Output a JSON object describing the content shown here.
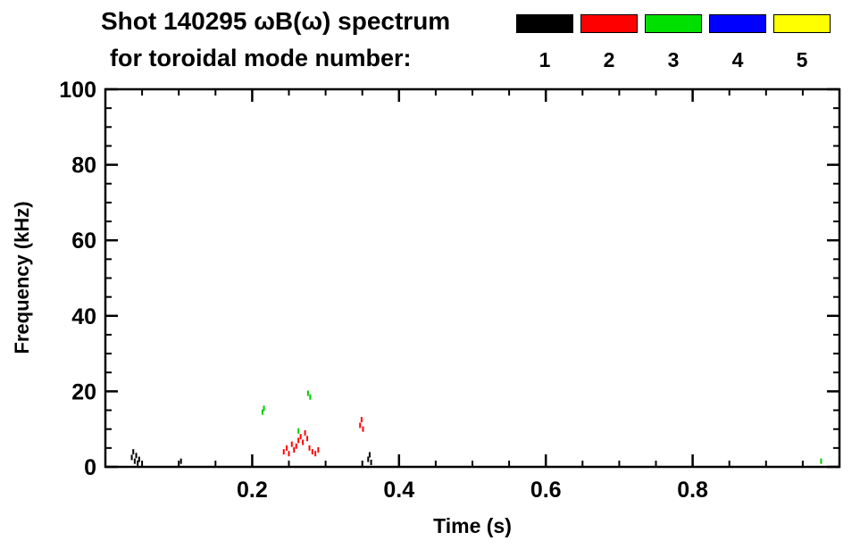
{
  "header": {
    "title": "Shot 140295 ωB(ω) spectrum",
    "subtitle": "for toroidal mode number:"
  },
  "legend": {
    "items": [
      {
        "label": "1",
        "color": "#000000"
      },
      {
        "label": "2",
        "color": "#ff0000"
      },
      {
        "label": "3",
        "color": "#00e000"
      },
      {
        "label": "4",
        "color": "#0000ff"
      },
      {
        "label": "5",
        "color": "#ffff00"
      }
    ]
  },
  "chart_data": {
    "type": "scatter",
    "title": "Shot 140295 ωB(ω) spectrum for toroidal mode number: 1 2 3 4 5",
    "xlabel": "Time (s)",
    "ylabel": "Frequency (kHz)",
    "xlim": [
      0.0,
      1.0
    ],
    "ylim": [
      0,
      100
    ],
    "xticks": {
      "values": [
        0.2,
        0.4,
        0.6,
        0.8
      ],
      "labels": [
        "0.2",
        "0.4",
        "0.6",
        "0.8"
      ]
    },
    "yticks": {
      "values": [
        0,
        20,
        40,
        60,
        80,
        100
      ],
      "labels": [
        "0",
        "20",
        "40",
        "60",
        "80",
        "100"
      ]
    },
    "x_minor_step": 0.05,
    "y_minor_step": 5,
    "grid": false,
    "legend_position": "top",
    "series": [
      {
        "name": "n1",
        "color": "#000000",
        "points": [
          [
            0.036,
            2.5
          ],
          [
            0.038,
            4
          ],
          [
            0.04,
            1.5
          ],
          [
            0.042,
            3
          ],
          [
            0.044,
            1
          ],
          [
            0.046,
            2
          ],
          [
            0.103,
            1.5
          ],
          [
            0.358,
            2
          ],
          [
            0.36,
            3.2
          ],
          [
            0.362,
            1.2
          ]
        ]
      },
      {
        "name": "n2",
        "color": "#ff0000",
        "points": [
          [
            0.243,
            4
          ],
          [
            0.247,
            5
          ],
          [
            0.25,
            3.5
          ],
          [
            0.254,
            6
          ],
          [
            0.257,
            4.5
          ],
          [
            0.26,
            5.5
          ],
          [
            0.263,
            7
          ],
          [
            0.266,
            8
          ],
          [
            0.269,
            6.5
          ],
          [
            0.272,
            9
          ],
          [
            0.275,
            7.5
          ],
          [
            0.278,
            5
          ],
          [
            0.282,
            4
          ],
          [
            0.286,
            3.5
          ],
          [
            0.29,
            4.5
          ],
          [
            0.347,
            11
          ],
          [
            0.349,
            12.5
          ],
          [
            0.351,
            10
          ]
        ]
      },
      {
        "name": "n3",
        "color": "#00cc00",
        "points": [
          [
            0.214,
            14.5
          ],
          [
            0.216,
            15.5
          ],
          [
            0.263,
            9.5
          ],
          [
            0.276,
            19.5
          ],
          [
            0.279,
            18.5
          ],
          [
            0.975,
            1.5
          ]
        ]
      },
      {
        "name": "n4",
        "color": "#0000ff",
        "points": []
      },
      {
        "name": "n5",
        "color": "#ffff00",
        "points": []
      }
    ]
  }
}
